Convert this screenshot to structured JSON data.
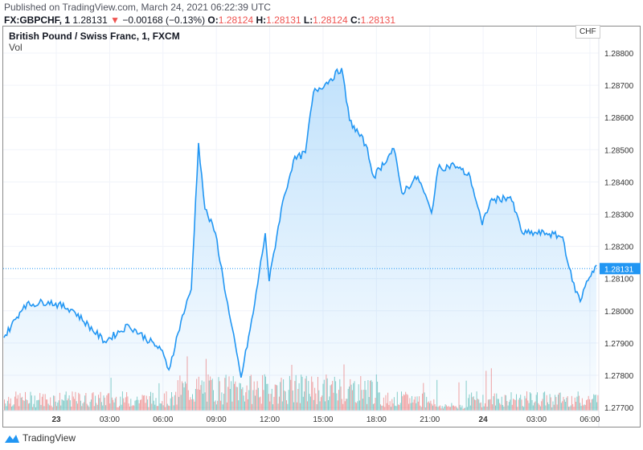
{
  "header": {
    "published": "Published on TradingView.com, March 24, 2021 06:22:39 UTC",
    "symbol": "FX:GBPCHF, 1",
    "last": "1.28131",
    "change": "−0.00168 (−0.13%)",
    "o_label": "O:",
    "o": "1.28124",
    "h_label": "H:",
    "h": "1.28131",
    "l_label": "L:",
    "l": "1.28124",
    "c_label": "C:",
    "c": "1.28131"
  },
  "legend": {
    "title": "British Pound / Swiss Franc, 1, FXCM",
    "vol": "Vol"
  },
  "currency": "CHF",
  "footer": {
    "brand": "TradingView"
  },
  "colors": {
    "line": "#2196f3",
    "up": "#26a69a",
    "down": "#ef5350"
  },
  "chart_data": {
    "type": "area",
    "title": "British Pound / Swiss Franc, 1, FXCM",
    "ylabel": "CHF",
    "ylim": [
      1.27685,
      1.28883
    ],
    "y_ticks": [
      "1.28800",
      "1.28700",
      "1.28600",
      "1.28500",
      "1.28400",
      "1.28300",
      "1.28200",
      "1.28100",
      "1.28000",
      "1.27900",
      "1.27800",
      "1.27700"
    ],
    "x_ticks": [
      {
        "h": 0,
        "label": "23"
      },
      {
        "h": 3,
        "label": "03:00"
      },
      {
        "h": 6,
        "label": "06:00"
      },
      {
        "h": 9,
        "label": "09:00"
      },
      {
        "h": 12,
        "label": "12:00"
      },
      {
        "h": 15,
        "label": "15:00"
      },
      {
        "h": 18,
        "label": "18:00"
      },
      {
        "h": 21,
        "label": "21:00"
      },
      {
        "h": 24,
        "label": "24"
      },
      {
        "h": 27,
        "label": "03:00"
      },
      {
        "h": 30,
        "label": "06:00"
      }
    ],
    "x_unit": "hours since Mar 23 00:00 UTC",
    "last_price": 1.28131,
    "last_price_label": "1.28131",
    "series": [
      [
        -2.94,
        1.27917
      ],
      [
        -1.81,
        1.28017
      ],
      [
        -0.45,
        1.28029
      ],
      [
        0.9,
        1.28004
      ],
      [
        2.71,
        1.27905
      ],
      [
        4.07,
        1.27955
      ],
      [
        5.88,
        1.2788
      ],
      [
        6.33,
        1.27817
      ],
      [
        7.01,
        1.27967
      ],
      [
        7.59,
        1.28067
      ],
      [
        8.0,
        1.28521
      ],
      [
        8.36,
        1.28316
      ],
      [
        8.95,
        1.28241
      ],
      [
        9.72,
        1.27992
      ],
      [
        10.39,
        1.27793
      ],
      [
        11.07,
        1.27992
      ],
      [
        11.75,
        1.28241
      ],
      [
        11.97,
        1.28092
      ],
      [
        12.65,
        1.28316
      ],
      [
        13.33,
        1.28466
      ],
      [
        14.01,
        1.28491
      ],
      [
        14.46,
        1.28678
      ],
      [
        15.36,
        1.28715
      ],
      [
        16.04,
        1.28753
      ],
      [
        16.49,
        1.28591
      ],
      [
        17.4,
        1.28516
      ],
      [
        17.85,
        1.28416
      ],
      [
        18.98,
        1.28503
      ],
      [
        19.43,
        1.28366
      ],
      [
        20.33,
        1.28416
      ],
      [
        21.1,
        1.28304
      ],
      [
        21.46,
        1.28441
      ],
      [
        22.37,
        1.28453
      ],
      [
        23.27,
        1.28416
      ],
      [
        23.95,
        1.28266
      ],
      [
        24.4,
        1.28341
      ],
      [
        25.53,
        1.28354
      ],
      [
        26.21,
        1.28241
      ],
      [
        27.56,
        1.28241
      ],
      [
        28.47,
        1.28229
      ],
      [
        29.01,
        1.28092
      ],
      [
        29.46,
        1.28029
      ],
      [
        29.82,
        1.28092
      ],
      [
        30.37,
        1.28142
      ]
    ],
    "xlim": [
      -2.94,
      30.5
    ],
    "volume_series": "Vol (unlabeled, shown as green/red bars)"
  }
}
